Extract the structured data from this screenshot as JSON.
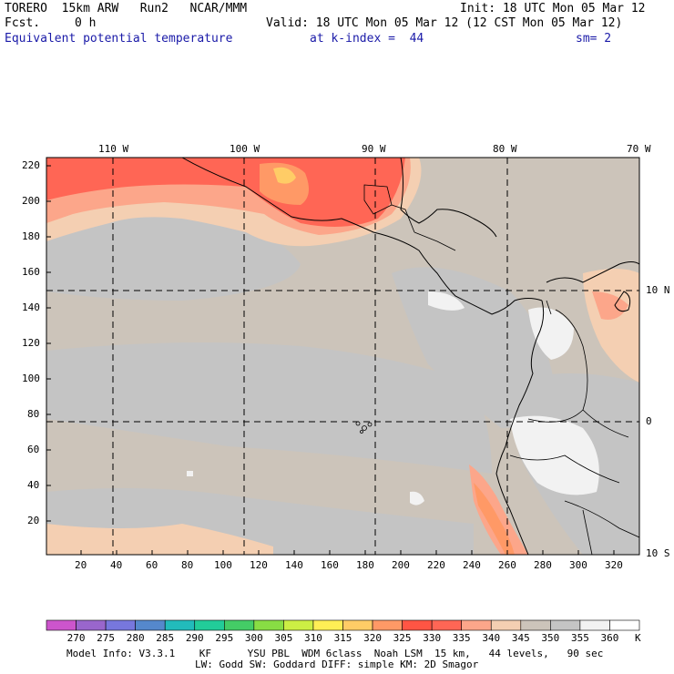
{
  "header": {
    "model": "TORERO  15km ARW   Run2   NCAR/MMM",
    "init": "Init: 18 UTC Mon 05 Mar 12",
    "fcst_label": "Fcst.",
    "fcst_value": "0 h",
    "valid": "Valid: 18 UTC Mon 05 Mar 12 (12 CST Mon 05 Mar 12)",
    "field": "Equivalent potential temperature",
    "kindex": "at k-index =  44",
    "sm": "sm= 2"
  },
  "axes": {
    "left_ticks": [
      "220",
      "200",
      "180",
      "160",
      "140",
      "120",
      "100",
      "80",
      "60",
      "40",
      "20"
    ],
    "bottom_ticks": [
      "20",
      "40",
      "60",
      "80",
      "100",
      "120",
      "140",
      "160",
      "180",
      "200",
      "220",
      "240",
      "260",
      "280",
      "300",
      "320"
    ],
    "top_lon_labels": [
      "110 W",
      "100 W",
      "90 W",
      "80 W",
      "70 W"
    ],
    "right_lat_labels": [
      "10 N",
      "0",
      "10 S"
    ]
  },
  "colorbar": {
    "labels": [
      "270",
      "275",
      "280",
      "285",
      "290",
      "295",
      "300",
      "305",
      "310",
      "315",
      "320",
      "325",
      "330",
      "335",
      "340",
      "345",
      "350",
      "355",
      "360"
    ],
    "unit": "K",
    "colors": [
      "#cc55cc",
      "#9966cc",
      "#7777dd",
      "#5588cc",
      "#22bbbb",
      "#22cc99",
      "#44cc66",
      "#88dd44",
      "#ccee44",
      "#ffee55",
      "#ffcc66",
      "#ff9966",
      "#ff5544",
      "#ff6655",
      "#fca68a",
      "#f4cfb2",
      "#ccc4ba",
      "#c4c4c4",
      "#f2f2f2"
    ]
  },
  "footer": {
    "line1": "Model Info: V3.3.1    KF      YSU PBL  WDM 6class  Noah LSM  15 km,   44 levels,   90 sec",
    "line2": "LW: Godd SW: Goddard DIFF: simple KM: 2D Smagor"
  }
}
